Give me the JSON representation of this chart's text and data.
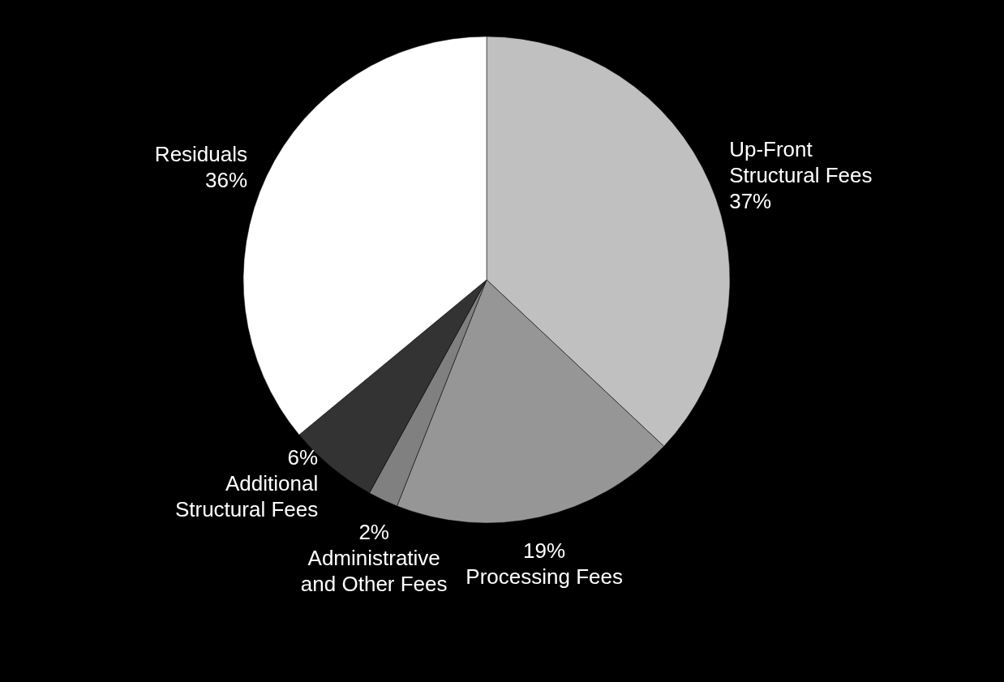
{
  "chart_data": {
    "type": "pie",
    "categories": [
      "Up-Front Structural Fees",
      "Processing Fees",
      "Administrative and Other Fees",
      "Additional Structural Fees",
      "Residuals"
    ],
    "values": [
      37,
      19,
      2,
      6,
      36
    ],
    "value_labels": [
      "37%",
      "19%",
      "2%",
      "6%",
      "36%"
    ],
    "colors": [
      "#c0c0c0",
      "#969696",
      "#808080",
      "#333333",
      "#ffffff"
    ],
    "legend": false
  }
}
